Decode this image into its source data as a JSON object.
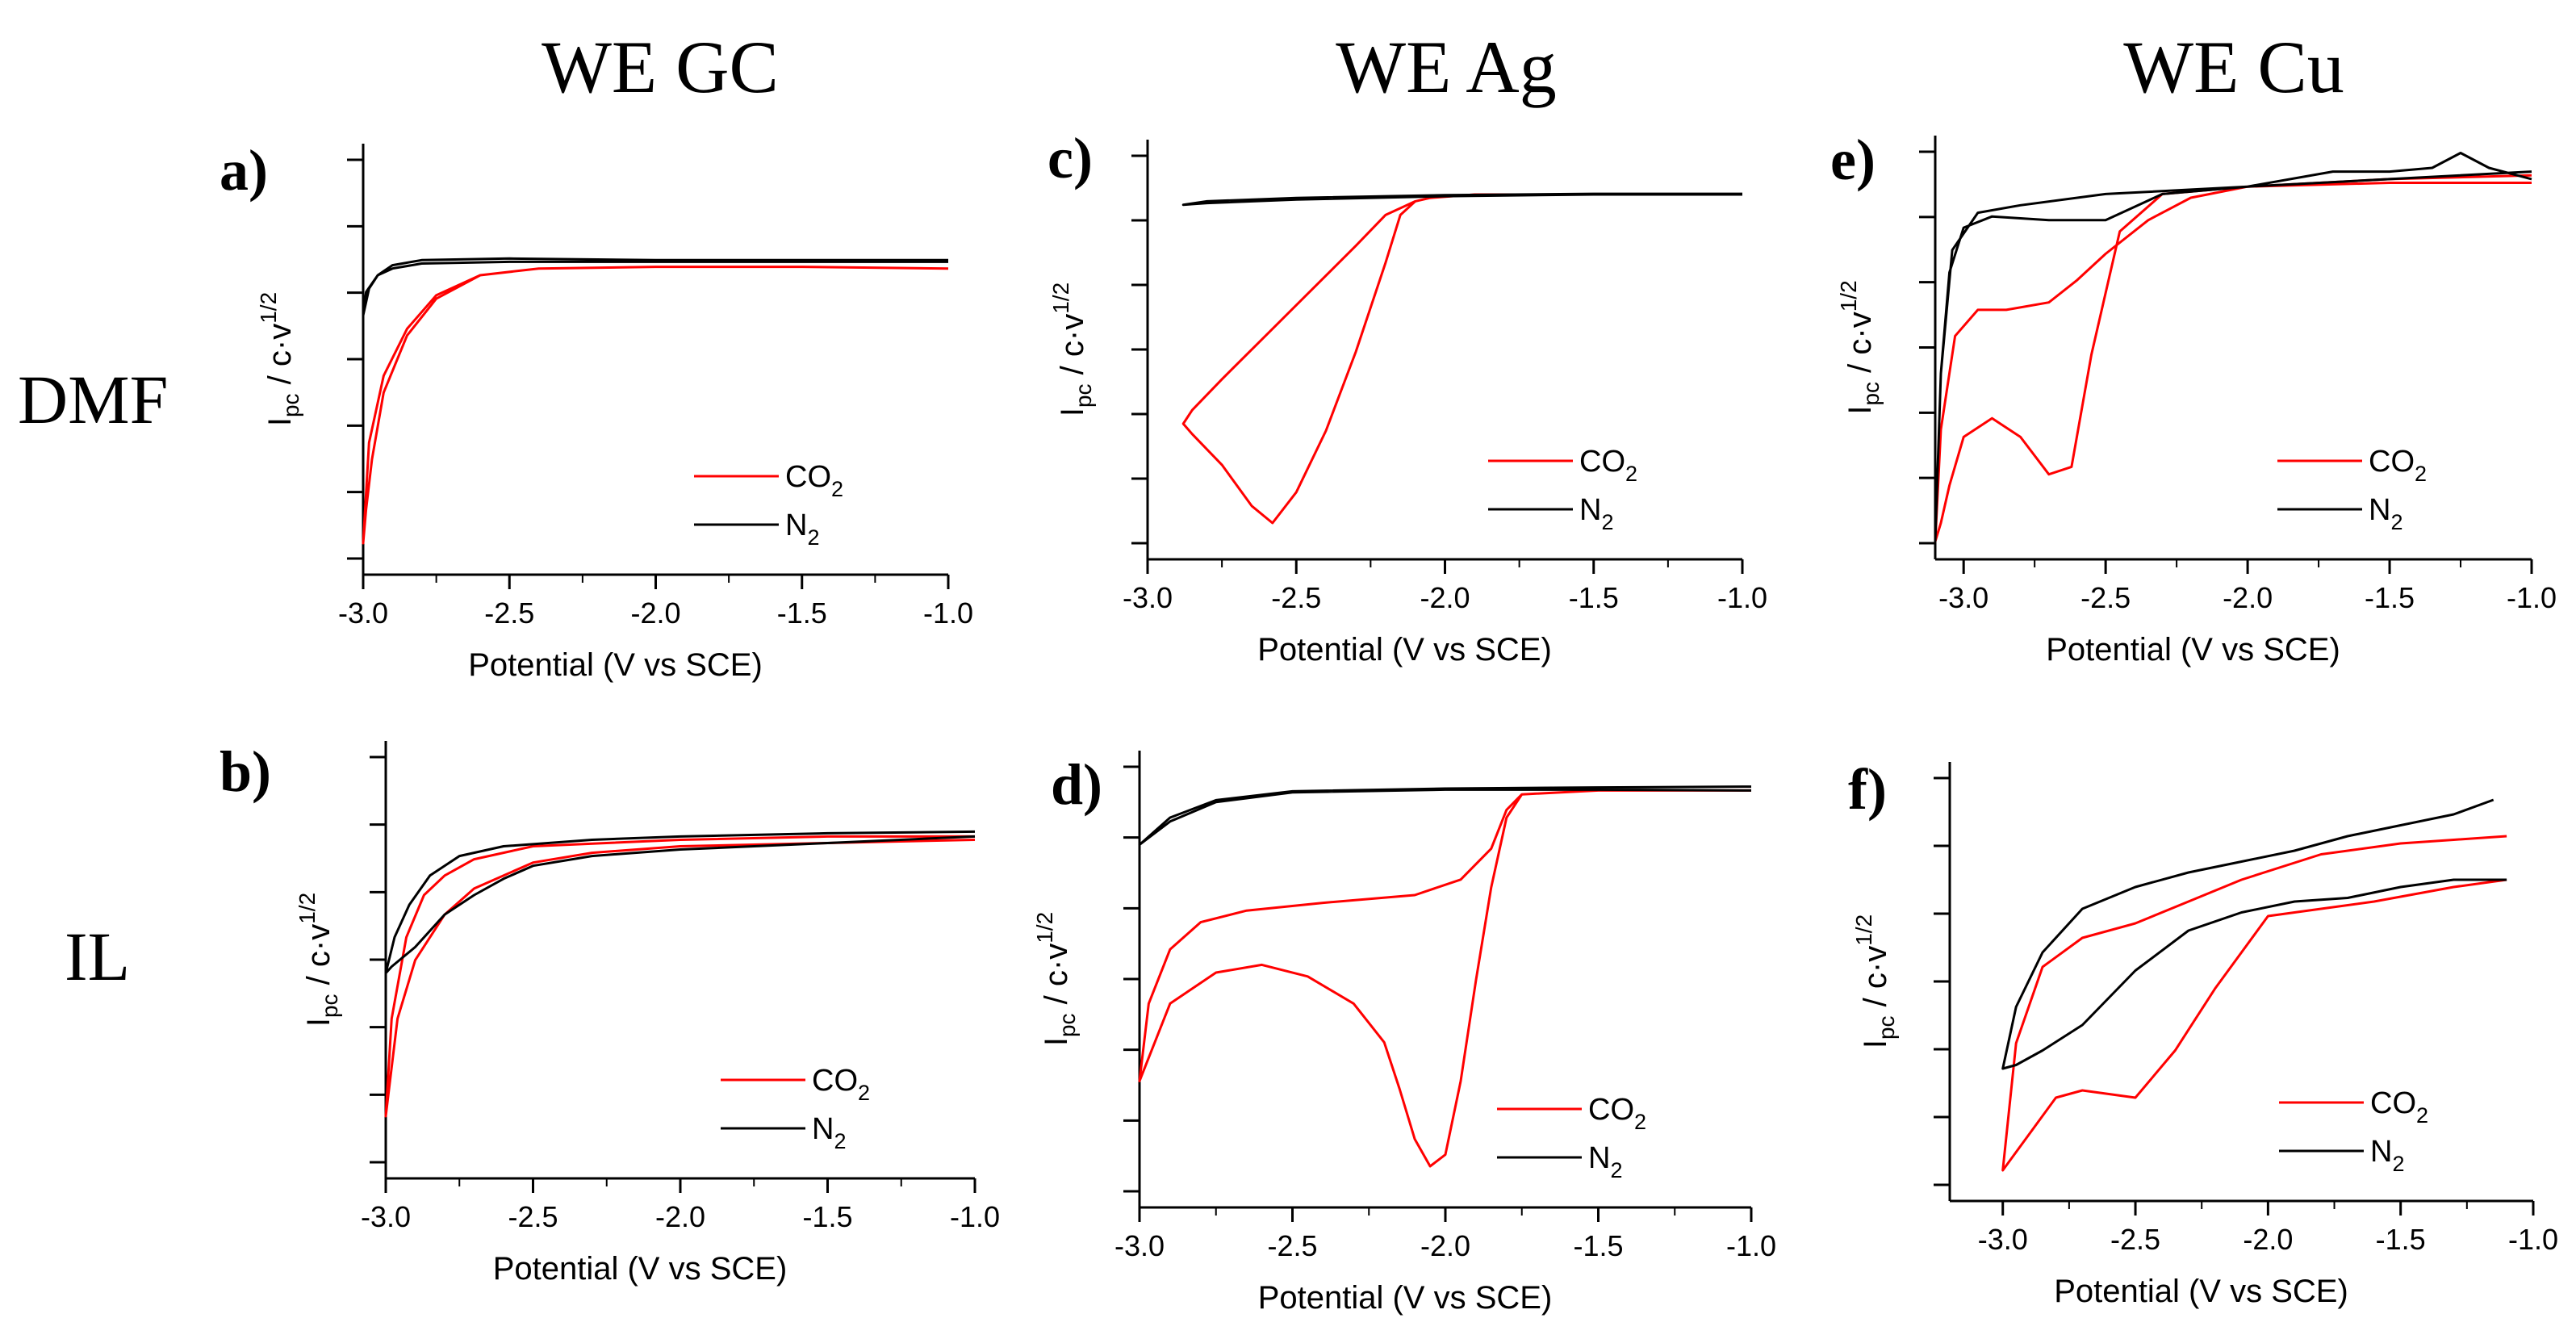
{
  "column_titles": [
    "WE GC",
    "WE Ag",
    "WE Cu"
  ],
  "row_labels": [
    "DMF",
    "IL"
  ],
  "colors": {
    "co2": "#ff0000",
    "n2": "#000000",
    "axis": "#000000"
  },
  "chart_data": [
    {
      "panel": "a)",
      "type": "line",
      "solvent": "DMF",
      "electrode": "WE GC",
      "xlabel": "Potential (V vs SCE)",
      "ylabel": "Ipc / c·v1/2",
      "xlim": [
        -3.0,
        -1.0
      ],
      "xticks": [
        -3.0,
        -2.5,
        -2.0,
        -1.5,
        -1.0
      ],
      "xtick_labels": [
        "-3.0",
        "-2.5",
        "-2.0",
        "-1.5",
        "-1.0"
      ],
      "ylim": [
        0,
        1
      ],
      "legend": [
        "CO2",
        "N2"
      ],
      "legend_position": "bottom-right",
      "series": [
        {
          "name": "CO2",
          "color": "#ff0000",
          "x": [
            -1.0,
            -1.5,
            -2.0,
            -2.4,
            -2.6,
            -2.75,
            -2.85,
            -2.93,
            -2.97,
            -2.99,
            -3.0,
            -2.98,
            -2.93,
            -2.85,
            -2.75,
            -2.6,
            -2.4,
            -2.0,
            -1.5,
            -1.0
          ],
          "y": [
            0.82,
            0.825,
            0.825,
            0.82,
            0.8,
            0.73,
            0.62,
            0.45,
            0.25,
            0.1,
            0.0,
            0.3,
            0.5,
            0.64,
            0.74,
            0.8,
            0.82,
            0.825,
            0.825,
            0.82
          ]
        },
        {
          "name": "N2",
          "color": "#000000",
          "x": [
            -1.0,
            -1.5,
            -2.0,
            -2.5,
            -2.8,
            -2.9,
            -2.95,
            -2.99,
            -3.0,
            -2.98,
            -2.95,
            -2.9,
            -2.8,
            -2.5,
            -2.0,
            -1.5,
            -1.0
          ],
          "y": [
            0.84,
            0.84,
            0.84,
            0.84,
            0.835,
            0.82,
            0.8,
            0.75,
            0.68,
            0.76,
            0.8,
            0.83,
            0.845,
            0.85,
            0.845,
            0.845,
            0.845
          ]
        }
      ]
    },
    {
      "panel": "b)",
      "type": "line",
      "solvent": "IL",
      "electrode": "WE GC",
      "xlabel": "Potential (V vs SCE)",
      "ylabel": "Ipc / c·v1/2",
      "xlim": [
        -3.0,
        -1.0
      ],
      "xticks": [
        -3.0,
        -2.5,
        -2.0,
        -1.5,
        -1.0
      ],
      "xtick_labels": [
        "-3.0",
        "-2.5",
        "-2.0",
        "-1.5",
        "-1.0"
      ],
      "ylim": [
        0,
        1
      ],
      "legend": [
        "CO2",
        "N2"
      ],
      "legend_position": "bottom-right",
      "series": [
        {
          "name": "CO2",
          "color": "#ff0000",
          "x": [
            -1.0,
            -1.5,
            -2.0,
            -2.3,
            -2.5,
            -2.7,
            -2.8,
            -2.9,
            -2.96,
            -2.98,
            -3.0,
            -2.98,
            -2.93,
            -2.87,
            -2.8,
            -2.7,
            -2.5,
            -2.0,
            -1.5,
            -1.0
          ],
          "y": [
            0.85,
            0.84,
            0.83,
            0.81,
            0.78,
            0.7,
            0.62,
            0.48,
            0.3,
            0.15,
            0.0,
            0.3,
            0.55,
            0.68,
            0.74,
            0.79,
            0.83,
            0.85,
            0.86,
            0.86
          ]
        },
        {
          "name": "N2",
          "color": "#000000",
          "x": [
            -1.0,
            -1.5,
            -2.0,
            -2.3,
            -2.5,
            -2.6,
            -2.7,
            -2.8,
            -2.9,
            -2.98,
            -3.0,
            -2.97,
            -2.92,
            -2.85,
            -2.75,
            -2.6,
            -2.3,
            -2.0,
            -1.5,
            -1.0
          ],
          "y": [
            0.86,
            0.84,
            0.82,
            0.8,
            0.77,
            0.73,
            0.68,
            0.62,
            0.52,
            0.46,
            0.44,
            0.55,
            0.65,
            0.74,
            0.8,
            0.83,
            0.85,
            0.86,
            0.87,
            0.875
          ]
        }
      ]
    },
    {
      "panel": "c)",
      "type": "line",
      "solvent": "DMF",
      "electrode": "WE Ag",
      "xlabel": "Potential (V vs SCE)",
      "ylabel": "Ipc / c·v1/2",
      "xlim": [
        -3.0,
        -1.0
      ],
      "xticks": [
        -3.0,
        -2.5,
        -2.0,
        -1.5,
        -1.0
      ],
      "xtick_labels": [
        "-3.0",
        "-2.5",
        "-2.0",
        "-1.5",
        "-1.0"
      ],
      "ylim": [
        0,
        1
      ],
      "legend": [
        "CO2",
        "N2"
      ],
      "legend_position": "bottom-right",
      "series": [
        {
          "name": "CO2",
          "color": "#ff0000",
          "x": [
            -1.0,
            -1.5,
            -1.9,
            -2.05,
            -2.1,
            -2.15,
            -2.2,
            -2.3,
            -2.4,
            -2.5,
            -2.58,
            -2.65,
            -2.75,
            -2.85,
            -2.88,
            -2.85,
            -2.75,
            -2.6,
            -2.45,
            -2.3,
            -2.2,
            -2.1,
            -2.05,
            -1.9,
            -1.5,
            -1.0
          ],
          "y": [
            0.96,
            0.96,
            0.96,
            0.95,
            0.94,
            0.9,
            0.76,
            0.5,
            0.27,
            0.09,
            0.0,
            0.05,
            0.17,
            0.26,
            0.29,
            0.33,
            0.42,
            0.55,
            0.68,
            0.81,
            0.9,
            0.94,
            0.95,
            0.96,
            0.96,
            0.96
          ]
        },
        {
          "name": "N2",
          "color": "#000000",
          "x": [
            -1.0,
            -1.5,
            -2.0,
            -2.5,
            -2.8,
            -2.88,
            -2.8,
            -2.5,
            -2.0,
            -1.5,
            -1.0
          ],
          "y": [
            0.96,
            0.96,
            0.955,
            0.945,
            0.935,
            0.93,
            0.94,
            0.95,
            0.958,
            0.962,
            0.962
          ]
        }
      ]
    },
    {
      "panel": "d)",
      "type": "line",
      "solvent": "IL",
      "electrode": "WE Ag",
      "xlabel": "Potential (V vs SCE)",
      "ylabel": "Ipc / c·v1/2",
      "xlim": [
        -3.0,
        -1.0
      ],
      "xticks": [
        -3.0,
        -2.5,
        -2.0,
        -1.5,
        -1.0
      ],
      "xtick_labels": [
        "-3.0",
        "-2.5",
        "-2.0",
        "-1.5",
        "-1.0"
      ],
      "ylim": [
        0,
        1
      ],
      "legend": [
        "CO2",
        "N2"
      ],
      "legend_position": "bottom-right",
      "series": [
        {
          "name": "CO2",
          "color": "#ff0000",
          "x": [
            -1.0,
            -1.5,
            -1.75,
            -1.8,
            -1.85,
            -1.9,
            -1.95,
            -2.0,
            -2.05,
            -2.1,
            -2.15,
            -2.2,
            -2.3,
            -2.45,
            -2.6,
            -2.75,
            -2.9,
            -3.0,
            -2.97,
            -2.9,
            -2.8,
            -2.65,
            -2.4,
            -2.1,
            -1.95,
            -1.85,
            -1.8,
            -1.75,
            -1.5,
            -1.0
          ],
          "y": [
            0.97,
            0.97,
            0.96,
            0.9,
            0.72,
            0.48,
            0.22,
            0.03,
            0.0,
            0.07,
            0.2,
            0.32,
            0.42,
            0.49,
            0.52,
            0.5,
            0.42,
            0.22,
            0.42,
            0.56,
            0.63,
            0.66,
            0.68,
            0.7,
            0.74,
            0.82,
            0.92,
            0.96,
            0.97,
            0.97
          ]
        },
        {
          "name": "N2",
          "color": "#000000",
          "x": [
            -1.0,
            -1.5,
            -2.0,
            -2.5,
            -2.75,
            -2.9,
            -3.0,
            -2.9,
            -2.75,
            -2.5,
            -2.0,
            -1.5,
            -1.0
          ],
          "y": [
            0.97,
            0.972,
            0.972,
            0.965,
            0.94,
            0.89,
            0.83,
            0.9,
            0.945,
            0.968,
            0.975,
            0.978,
            0.98
          ]
        }
      ]
    },
    {
      "panel": "e)",
      "type": "line",
      "solvent": "DMF",
      "electrode": "WE Cu",
      "xlabel": "Potential (V vs SCE)",
      "ylabel": "Ipc / c·v1/2",
      "xlim": [
        -3.1,
        -1.0
      ],
      "xticks": [
        -3.0,
        -2.5,
        -2.0,
        -1.5,
        -1.0
      ],
      "xtick_labels": [
        "-3.0",
        "-2.5",
        "-2.0",
        "-1.5",
        "-1.0"
      ],
      "ylim": [
        0,
        1
      ],
      "legend": [
        "CO2",
        "N2"
      ],
      "legend_position": "bottom-right",
      "series": [
        {
          "name": "CO2",
          "color": "#ff0000",
          "x": [
            -1.0,
            -1.5,
            -2.0,
            -2.3,
            -2.45,
            -2.55,
            -2.62,
            -2.7,
            -2.8,
            -2.9,
            -3.0,
            -3.05,
            -3.08,
            -3.1,
            -3.08,
            -3.03,
            -2.95,
            -2.85,
            -2.7,
            -2.6,
            -2.5,
            -2.35,
            -2.2,
            -2.0,
            -1.5,
            -1.0
          ],
          "y": [
            0.96,
            0.96,
            0.95,
            0.93,
            0.83,
            0.5,
            0.2,
            0.18,
            0.28,
            0.33,
            0.28,
            0.15,
            0.05,
            0.0,
            0.3,
            0.55,
            0.62,
            0.62,
            0.64,
            0.7,
            0.77,
            0.86,
            0.92,
            0.95,
            0.97,
            0.98
          ]
        },
        {
          "name": "N2",
          "color": "#000000",
          "x": [
            -1.0,
            -1.05,
            -1.15,
            -1.25,
            -1.35,
            -1.5,
            -1.7,
            -2.0,
            -2.3,
            -2.5,
            -2.7,
            -2.9,
            -3.0,
            -3.05,
            -3.08,
            -3.1,
            -3.08,
            -3.04,
            -2.95,
            -2.8,
            -2.5,
            -2.0,
            -1.5,
            -1.0
          ],
          "y": [
            0.97,
            0.98,
            1.0,
            1.04,
            1.0,
            0.99,
            0.99,
            0.95,
            0.93,
            0.86,
            0.86,
            0.87,
            0.84,
            0.72,
            0.45,
            0.0,
            0.45,
            0.78,
            0.88,
            0.9,
            0.93,
            0.95,
            0.97,
            0.99
          ]
        }
      ]
    },
    {
      "panel": "f)",
      "type": "line",
      "solvent": "IL",
      "electrode": "WE Cu",
      "xlabel": "Potential (V vs SCE)",
      "ylabel": "Ipc / c·v1/2",
      "xlim": [
        -3.2,
        -1.0
      ],
      "xticks": [
        -3.0,
        -2.5,
        -2.0,
        -1.5,
        -1.0
      ],
      "xtick_labels": [
        "-3.0",
        "-2.5",
        "-2.0",
        "-1.5",
        "-1.0"
      ],
      "ylim": [
        0,
        1
      ],
      "legend": [
        "CO2",
        "N2"
      ],
      "legend_position": "bottom-right",
      "series": [
        {
          "name": "CO2",
          "color": "#ff0000",
          "x": [
            -1.1,
            -1.3,
            -1.6,
            -1.8,
            -2.0,
            -2.2,
            -2.35,
            -2.5,
            -2.6,
            -2.7,
            -2.8,
            -2.9,
            -3.0,
            -2.95,
            -2.85,
            -2.7,
            -2.5,
            -2.3,
            -2.1,
            -1.8,
            -1.5,
            -1.3,
            -1.1
          ],
          "y": [
            0.8,
            0.78,
            0.74,
            0.72,
            0.7,
            0.5,
            0.33,
            0.2,
            0.21,
            0.22,
            0.2,
            0.1,
            0.0,
            0.35,
            0.56,
            0.64,
            0.68,
            0.74,
            0.8,
            0.87,
            0.9,
            0.91,
            0.92
          ]
        },
        {
          "name": "N2",
          "color": "#000000",
          "x": [
            -1.1,
            -1.3,
            -1.5,
            -1.7,
            -1.9,
            -2.1,
            -2.3,
            -2.5,
            -2.7,
            -2.85,
            -2.95,
            -3.0,
            -2.95,
            -2.85,
            -2.7,
            -2.5,
            -2.3,
            -2.1,
            -1.9,
            -1.7,
            -1.5,
            -1.3,
            -1.15
          ],
          "y": [
            0.8,
            0.8,
            0.78,
            0.75,
            0.74,
            0.71,
            0.66,
            0.55,
            0.4,
            0.33,
            0.29,
            0.28,
            0.45,
            0.6,
            0.72,
            0.78,
            0.82,
            0.85,
            0.88,
            0.92,
            0.95,
            0.98,
            1.02
          ]
        }
      ]
    }
  ]
}
